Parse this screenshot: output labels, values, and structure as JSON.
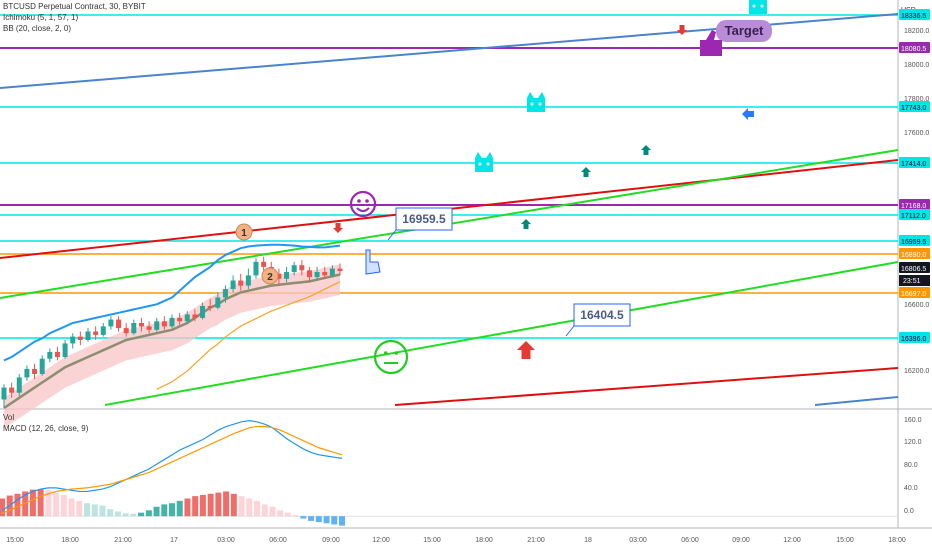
{
  "header": {
    "symbol": "BTCUSD Perpetual Contract, 30, BYBIT",
    "ichimoku": "Ichimoku (5, 1, 57, 1)",
    "bb": "BB (20, close, 2, 0)",
    "vol": "Vol",
    "macd": "MACD (12, 26, close, 9)"
  },
  "axis": {
    "currency": "USD"
  },
  "chart_data": [
    {
      "type": "line",
      "title": "BTCUSD Perpetual Contract, 30, BYBIT",
      "ylim": [
        16000,
        18400
      ],
      "yticks": [
        "18200.0",
        "18000.0",
        "17800.0",
        "17600.0",
        "17000.0",
        "16600.0",
        "16200.0"
      ],
      "xticks": [
        "15:00",
        "18:00",
        "21:00",
        "17",
        "03:00",
        "06:00",
        "09:00",
        "12:00",
        "15:00",
        "18:00",
        "21:00",
        "18",
        "03:00",
        "06:00",
        "09:00",
        "12:00",
        "15:00",
        "18:00"
      ],
      "price_levels": [
        {
          "label": "18336.5",
          "color": "#00e5e5"
        },
        {
          "label": "18080.5",
          "color": "#9c27b0"
        },
        {
          "label": "17743.0",
          "color": "#00e5e5"
        },
        {
          "label": "17414.0",
          "color": "#00e5e5"
        },
        {
          "label": "17168.0",
          "color": "#9c27b0"
        },
        {
          "label": "17112.0",
          "color": "#00e5e5"
        },
        {
          "label": "16959.5",
          "color": "#00e5e5"
        },
        {
          "label": "16890.0",
          "color": "#ff9800"
        },
        {
          "label": "16806.5",
          "color": "#131722"
        },
        {
          "label": "16697.0",
          "color": "#ff9800"
        },
        {
          "label": "16396.0",
          "color": "#00e5e5"
        }
      ],
      "countdown": "23:51",
      "callouts": [
        {
          "text": "16959.5"
        },
        {
          "text": "16404.5"
        },
        {
          "text": "Target"
        }
      ],
      "markers": [
        {
          "text": "1"
        },
        {
          "text": "2"
        }
      ],
      "candles": [
        [
          16050,
          16120,
          16000,
          16140
        ],
        [
          16120,
          16090,
          16060,
          16150
        ],
        [
          16090,
          16180,
          16070,
          16200
        ],
        [
          16180,
          16230,
          16160,
          16250
        ],
        [
          16230,
          16200,
          16170,
          16260
        ],
        [
          16200,
          16290,
          16190,
          16310
        ],
        [
          16290,
          16330,
          16270,
          16350
        ],
        [
          16330,
          16300,
          16280,
          16360
        ],
        [
          16300,
          16380,
          16290,
          16400
        ],
        [
          16380,
          16420,
          16350,
          16440
        ],
        [
          16420,
          16400,
          16370,
          16450
        ],
        [
          16400,
          16450,
          16390,
          16470
        ],
        [
          16450,
          16430,
          16400,
          16480
        ],
        [
          16430,
          16480,
          16420,
          16500
        ],
        [
          16480,
          16520,
          16460,
          16540
        ],
        [
          16520,
          16470,
          16450,
          16540
        ],
        [
          16470,
          16440,
          16420,
          16500
        ],
        [
          16440,
          16500,
          16430,
          16520
        ],
        [
          16500,
          16480,
          16450,
          16530
        ],
        [
          16480,
          16460,
          16440,
          16510
        ],
        [
          16460,
          16510,
          16450,
          16530
        ],
        [
          16510,
          16480,
          16460,
          16540
        ],
        [
          16480,
          16530,
          16470,
          16550
        ],
        [
          16530,
          16510,
          16490,
          16560
        ],
        [
          16510,
          16550,
          16500,
          16570
        ],
        [
          16550,
          16530,
          16510,
          16580
        ],
        [
          16530,
          16600,
          16520,
          16620
        ],
        [
          16600,
          16590,
          16570,
          16640
        ],
        [
          16590,
          16650,
          16580,
          16680
        ],
        [
          16650,
          16700,
          16620,
          16720
        ],
        [
          16700,
          16750,
          16680,
          16780
        ],
        [
          16750,
          16720,
          16690,
          16790
        ],
        [
          16720,
          16780,
          16700,
          16820
        ],
        [
          16780,
          16860,
          16760,
          16880
        ],
        [
          16860,
          16830,
          16800,
          16890
        ],
        [
          16830,
          16790,
          16760,
          16860
        ],
        [
          16790,
          16760,
          16720,
          16820
        ],
        [
          16760,
          16800,
          16740,
          16830
        ],
        [
          16800,
          16840,
          16780,
          16860
        ],
        [
          16840,
          16810,
          16780,
          16870
        ],
        [
          16810,
          16770,
          16740,
          16830
        ],
        [
          16770,
          16800,
          16750,
          16830
        ],
        [
          16800,
          16780,
          16760,
          16830
        ],
        [
          16780,
          16820,
          16770,
          16840
        ],
        [
          16820,
          16806,
          16780,
          16850
        ]
      ],
      "series": [
        {
          "name": "BB upper",
          "values": [
            16280,
            16300,
            16330,
            16360,
            16390,
            16410,
            16440,
            16460,
            16480,
            16500,
            16510,
            16520,
            16530,
            16540,
            16550,
            16560,
            16570,
            16580,
            16590,
            16600,
            16610,
            16630,
            16650,
            16690,
            16730,
            16770,
            16800,
            16830,
            16870,
            16900,
            16920,
            16940,
            16950,
            16955,
            16958,
            16960,
            16960,
            16958,
            16955,
            16950,
            16948,
            16945,
            16945,
            16950,
            16955
          ]
        },
        {
          "name": "BB basis",
          "values": [
            16000,
            16030,
            16060,
            16090,
            16120,
            16150,
            16180,
            16210,
            16240,
            16260,
            16280,
            16300,
            16320,
            16340,
            16360,
            16380,
            16400,
            16410,
            16420,
            16430,
            16440,
            16450,
            16460,
            16480,
            16500,
            16530,
            16560,
            16590,
            16610,
            16640,
            16660,
            16680,
            16690,
            16700,
            16710,
            16720,
            16725,
            16730,
            16735,
            16740,
            16745,
            16755,
            16765,
            16775,
            16785
          ]
        }
      ]
    },
    {
      "type": "bar",
      "title": "MACD (12, 26, close, 9)",
      "ylim": [
        -20,
        180
      ],
      "yticks": [
        "160.0",
        "120.0",
        "80.0",
        "40.0",
        "0.0"
      ],
      "histogram": [
        30,
        35,
        38,
        42,
        45,
        46,
        44,
        40,
        36,
        30,
        26,
        22,
        20,
        18,
        12,
        8,
        5,
        4,
        6,
        10,
        16,
        20,
        22,
        26,
        30,
        34,
        36,
        38,
        40,
        42,
        38,
        34,
        30,
        26,
        20,
        16,
        10,
        6,
        2,
        -4,
        -8,
        -10,
        -12,
        -14,
        -16
      ],
      "series": [
        {
          "name": "MACD",
          "values": [
            10,
            18,
            28,
            36,
            42,
            46,
            48,
            48,
            46,
            44,
            42,
            42,
            44,
            46,
            50,
            56,
            62,
            68,
            74,
            80,
            88,
            96,
            104,
            112,
            118,
            124,
            130,
            138,
            146,
            152,
            156,
            160,
            162,
            160,
            156,
            150,
            140,
            130,
            122,
            114,
            108,
            104,
            102,
            100,
            98
          ]
        },
        {
          "name": "Signal",
          "values": [
            5,
            10,
            16,
            22,
            28,
            34,
            38,
            42,
            44,
            46,
            47,
            48,
            50,
            52,
            54,
            58,
            62,
            66,
            70,
            74,
            80,
            86,
            92,
            98,
            104,
            110,
            116,
            122,
            128,
            134,
            140,
            145,
            150,
            152,
            152,
            150,
            146,
            140,
            134,
            128,
            122,
            116,
            112,
            108,
            104
          ]
        }
      ]
    }
  ]
}
